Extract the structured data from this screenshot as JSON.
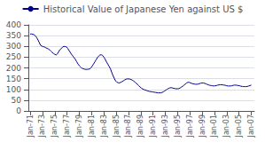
{
  "chart_data": {
    "type": "line",
    "color": "#00008B",
    "legend": "top",
    "grid": true,
    "series": [
      {
        "name": "Historical Value of Japanese Yen against US $",
        "color": "#00008B"
      }
    ],
    "x": [
      1971,
      1971.210526,
      1971.421053,
      1971.631579,
      1971.842105,
      1972.052632,
      1972.263158,
      1972.473684,
      1972.684211,
      1972.894737,
      1973.105263,
      1973.315789,
      1973.526316,
      1973.736842,
      1973.947368,
      1974.157895,
      1974.368421,
      1974.578947,
      1974.789474,
      1975,
      1975.210526,
      1975.421053,
      1975.631579,
      1975.842105,
      1976.052632,
      1976.263158,
      1976.473684,
      1976.684211,
      1976.894737,
      1977.105263,
      1977.315789,
      1977.526316,
      1977.736842,
      1977.947368,
      1978.157895,
      1978.368421,
      1978.578947,
      1978.789474,
      1979,
      1979.210526,
      1979.421053,
      1979.631579,
      1979.842105,
      1980.052632,
      1980.263158,
      1980.473684,
      1980.684211,
      1980.894737,
      1981.105263,
      1981.315789,
      1981.526316,
      1981.736842,
      1981.947368,
      1982.157895,
      1982.368421,
      1982.578947,
      1982.789474,
      1983,
      1983.210526,
      1983.421053,
      1983.631579,
      1983.842105,
      1984.052632,
      1984.263158,
      1984.473684,
      1984.684211,
      1984.894737,
      1985.105263,
      1985.315789,
      1985.526316,
      1985.736842,
      1985.947368,
      1986.157895,
      1986.368421,
      1986.578947,
      1986.789474,
      1987,
      1987.210526,
      1987.421053,
      1987.631579,
      1987.842105,
      1988.052632,
      1988.263158,
      1988.473684,
      1988.684211,
      1988.894737,
      1989.105263,
      1989.315789,
      1989.526316,
      1989.736842,
      1989.947368,
      1990.157895,
      1990.368421,
      1990.578947,
      1990.789474,
      1991,
      1991.210526,
      1991.421053,
      1991.631579,
      1991.842105,
      1992.052632,
      1992.263158,
      1992.473684,
      1992.684211,
      1992.894737,
      1993.105263,
      1993.315789,
      1993.526316,
      1993.736842,
      1993.947368,
      1994.157895,
      1994.368421,
      1994.578947,
      1994.789474,
      1995,
      1995.210526,
      1995.421053,
      1995.631579,
      1995.842105,
      1996.052632,
      1996.263158,
      1996.473684,
      1996.684211,
      1996.894737,
      1997.105263,
      1997.315789,
      1997.526316,
      1997.736842,
      1997.947368,
      1998.157895,
      1998.368421,
      1998.578947,
      1998.789474,
      1999,
      1999.210526,
      1999.421053,
      1999.631579,
      1999.842105,
      2000.052632,
      2000.263158,
      2000.473684,
      2000.684211,
      2000.894737,
      2001.105263,
      2001.315789,
      2001.526316,
      2001.736842,
      2001.947368,
      2002.157895,
      2002.368421,
      2002.578947,
      2002.789474,
      2003,
      2003.210526,
      2003.421053,
      2003.631579,
      2003.842105,
      2004.052632,
      2004.263158,
      2004.473684,
      2004.684211,
      2004.894737,
      2005.105263,
      2005.315789,
      2005.526316,
      2005.736842,
      2005.947368,
      2006.157895,
      2006.368421,
      2006.578947,
      2006.789474,
      2007
    ],
    "values": [
      357,
      358,
      356,
      354,
      349,
      341,
      330,
      318,
      305,
      301,
      299,
      297,
      294,
      291,
      288,
      284,
      278,
      272,
      267,
      263,
      260,
      265,
      275,
      285,
      290,
      296,
      300,
      299,
      298,
      291,
      281,
      272,
      263,
      255,
      247,
      239,
      228,
      218,
      210,
      204,
      198,
      196,
      194,
      193,
      193,
      194,
      195,
      200,
      209,
      218,
      228,
      238,
      248,
      255,
      260,
      261,
      258,
      250,
      240,
      228,
      218,
      207,
      197,
      180,
      165,
      152,
      140,
      134,
      131,
      130,
      133,
      136,
      140,
      144,
      147,
      149,
      149,
      148,
      146,
      143,
      139,
      134,
      129,
      123,
      117,
      111,
      106,
      102,
      99,
      97,
      95,
      93,
      91,
      90,
      89,
      88,
      87,
      86,
      85,
      84,
      84,
      84,
      86,
      89,
      93,
      97,
      101,
      105,
      107,
      108,
      107,
      105,
      104,
      103,
      103,
      104,
      107,
      111,
      115,
      120,
      125,
      130,
      133,
      133,
      130,
      128,
      126,
      125,
      124,
      124,
      125,
      127,
      129,
      130,
      130,
      128,
      126,
      123,
      121,
      119,
      118,
      117,
      116,
      117,
      118,
      120,
      121,
      122,
      122,
      121,
      120,
      119,
      117,
      116,
      116,
      116,
      117,
      119,
      120,
      120,
      119,
      118,
      117,
      115,
      114,
      113,
      113,
      113,
      114,
      116,
      118,
      120
    ],
    "xlim": [
      1970.7,
      2007.5
    ],
    "xticks": [
      {
        "value": 1971,
        "label": "Jan-71"
      },
      {
        "value": 1973,
        "label": "Jan-73"
      },
      {
        "value": 1975,
        "label": "Jan-75"
      },
      {
        "value": 1977,
        "label": "Jan-77"
      },
      {
        "value": 1979,
        "label": "Jan-79"
      },
      {
        "value": 1981,
        "label": "Jan-81"
      },
      {
        "value": 1983,
        "label": "Jan-83"
      },
      {
        "value": 1985,
        "label": "Jan-85"
      },
      {
        "value": 1987,
        "label": "Jan-87"
      },
      {
        "value": 1989,
        "label": "Jan-89"
      },
      {
        "value": 1991,
        "label": "Jan-91"
      },
      {
        "value": 1993,
        "label": "Jan-93"
      },
      {
        "value": 1995,
        "label": "Jan-95"
      },
      {
        "value": 1997,
        "label": "Jan-97"
      },
      {
        "value": 1999,
        "label": "Jan-99"
      },
      {
        "value": 2001,
        "label": "Jan-01"
      },
      {
        "value": 2003,
        "label": "Jan-03"
      },
      {
        "value": 2005,
        "label": "Jan-05"
      },
      {
        "value": 2007,
        "label": "Jan-07"
      }
    ],
    "ylim": [
      0,
      400
    ],
    "yticks": [
      0,
      50,
      100,
      150,
      200,
      250,
      300,
      350,
      400
    ]
  }
}
